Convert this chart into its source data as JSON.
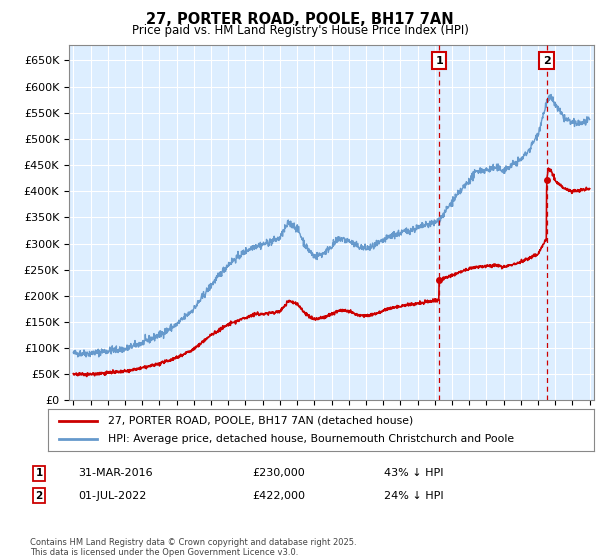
{
  "title": "27, PORTER ROAD, POOLE, BH17 7AN",
  "subtitle": "Price paid vs. HM Land Registry's House Price Index (HPI)",
  "hpi_color": "#6699cc",
  "price_color": "#cc0000",
  "dashed_color": "#cc0000",
  "bg_color": "#ffffff",
  "chart_bg": "#ddeeff",
  "grid_color": "#ffffff",
  "ylim": [
    0,
    680000
  ],
  "yticks": [
    0,
    50000,
    100000,
    150000,
    200000,
    250000,
    300000,
    350000,
    400000,
    450000,
    500000,
    550000,
    600000,
    650000
  ],
  "transaction1": {
    "date": "31-MAR-2016",
    "price": 230000,
    "label": "1",
    "hpi_pct": "43% ↓ HPI",
    "xdate": 2016.25
  },
  "transaction2": {
    "date": "01-JUL-2022",
    "price": 422000,
    "label": "2",
    "hpi_pct": "24% ↓ HPI",
    "xdate": 2022.5
  },
  "legend_line1": "27, PORTER ROAD, POOLE, BH17 7AN (detached house)",
  "legend_line2": "HPI: Average price, detached house, Bournemouth Christchurch and Poole",
  "footnote": "Contains HM Land Registry data © Crown copyright and database right 2025.\nThis data is licensed under the Open Government Licence v3.0.",
  "xlim": [
    1994.75,
    2025.25
  ]
}
